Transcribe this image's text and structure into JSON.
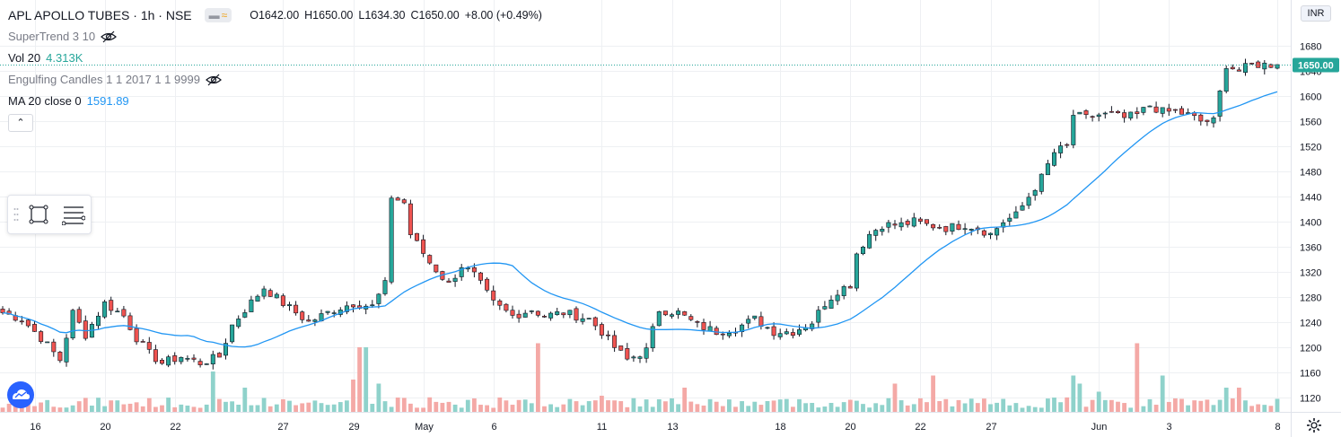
{
  "header": {
    "symbol_title": "APL APOLLO TUBES · 1h · NSE",
    "open": "O1642.00",
    "high": "H1650.00",
    "low": "L1634.30",
    "close": "C1650.00",
    "change": "+8.00 (+0.49%)",
    "currency": "INR"
  },
  "indicators": {
    "supertrend": "SuperTrend 3 10",
    "vol_label": "Vol 20",
    "vol_value": "4.313K",
    "engulfing": "Engulfing Candles 1 1 2017 1 1 9999",
    "ma_label": "MA 20 close 0",
    "ma_value": "1591.89"
  },
  "colors": {
    "up": "#26a69a",
    "down": "#ef5350",
    "ma": "#2196f3",
    "vol_up": "#8fd2cb",
    "vol_down": "#f4a9a6",
    "last_price_bg": "#26a69a"
  },
  "icons": [
    "eye-off-icon",
    "chevron-up-icon",
    "rectangle-tool-icon",
    "lines-tool-icon",
    "tradingview-logo-icon",
    "gear-icon"
  ],
  "chart_data": {
    "type": "candlestick",
    "title": "APL APOLLO TUBES · 1h · NSE",
    "ylim": [
      1100,
      1700
    ],
    "price_ticks": [
      1120,
      1160,
      1200,
      1240,
      1280,
      1320,
      1360,
      1400,
      1440,
      1480,
      1520,
      1560,
      1600,
      1640,
      1680
    ],
    "last_price": 1650.0,
    "last_price_label": "1650.00",
    "x_ticks": [
      {
        "label": "16",
        "bar": 5
      },
      {
        "label": "20",
        "bar": 16
      },
      {
        "label": "22",
        "bar": 27
      },
      {
        "label": "27",
        "bar": 44
      },
      {
        "label": "29",
        "bar": 55
      },
      {
        "label": "May",
        "bar": 66
      },
      {
        "label": "6",
        "bar": 77
      },
      {
        "label": "11",
        "bar": 94
      },
      {
        "label": "13",
        "bar": 105
      },
      {
        "label": "18",
        "bar": 122
      },
      {
        "label": "20",
        "bar": 133
      },
      {
        "label": "22",
        "bar": 144
      },
      {
        "label": "27",
        "bar": 155
      },
      {
        "label": "Jun",
        "bar": 172
      },
      {
        "label": "3",
        "bar": 183
      },
      {
        "label": "8",
        "bar": 200
      }
    ],
    "anchors": [
      [
        0,
        1255
      ],
      [
        3,
        1245
      ],
      [
        6,
        1215
      ],
      [
        9,
        1180
      ],
      [
        11,
        1255
      ],
      [
        13,
        1220
      ],
      [
        16,
        1270
      ],
      [
        19,
        1250
      ],
      [
        21,
        1215
      ],
      [
        23,
        1190
      ],
      [
        25,
        1175
      ],
      [
        28,
        1185
      ],
      [
        31,
        1175
      ],
      [
        34,
        1185
      ],
      [
        36,
        1235
      ],
      [
        38,
        1260
      ],
      [
        41,
        1295
      ],
      [
        44,
        1270
      ],
      [
        46,
        1255
      ],
      [
        48,
        1240
      ],
      [
        52,
        1260
      ],
      [
        55,
        1270
      ],
      [
        58,
        1265
      ],
      [
        60,
        1300
      ],
      [
        61,
        1440
      ],
      [
        63,
        1430
      ],
      [
        64,
        1380
      ],
      [
        67,
        1335
      ],
      [
        70,
        1300
      ],
      [
        72,
        1330
      ],
      [
        74,
        1315
      ],
      [
        77,
        1270
      ],
      [
        80,
        1250
      ],
      [
        83,
        1260
      ],
      [
        85,
        1250
      ],
      [
        88,
        1255
      ],
      [
        90,
        1250
      ],
      [
        92,
        1245
      ],
      [
        94,
        1225
      ],
      [
        96,
        1200
      ],
      [
        98,
        1180
      ],
      [
        101,
        1195
      ],
      [
        103,
        1260
      ],
      [
        106,
        1255
      ],
      [
        109,
        1235
      ],
      [
        112,
        1225
      ],
      [
        115,
        1230
      ],
      [
        118,
        1245
      ],
      [
        121,
        1225
      ],
      [
        124,
        1225
      ],
      [
        127,
        1240
      ],
      [
        129,
        1270
      ],
      [
        131,
        1290
      ],
      [
        133,
        1300
      ],
      [
        134,
        1350
      ],
      [
        136,
        1380
      ],
      [
        138,
        1395
      ],
      [
        141,
        1395
      ],
      [
        143,
        1400
      ],
      [
        145,
        1395
      ],
      [
        148,
        1390
      ],
      [
        151,
        1395
      ],
      [
        153,
        1390
      ],
      [
        155,
        1380
      ],
      [
        157,
        1400
      ],
      [
        159,
        1410
      ],
      [
        161,
        1440
      ],
      [
        163,
        1470
      ],
      [
        165,
        1510
      ],
      [
        167,
        1520
      ],
      [
        168,
        1570
      ],
      [
        170,
        1565
      ],
      [
        172,
        1570
      ],
      [
        174,
        1570
      ],
      [
        176,
        1565
      ],
      [
        178,
        1570
      ],
      [
        180,
        1585
      ],
      [
        182,
        1575
      ],
      [
        184,
        1575
      ],
      [
        186,
        1570
      ],
      [
        188,
        1560
      ],
      [
        190,
        1560
      ],
      [
        192,
        1650
      ],
      [
        194,
        1640
      ],
      [
        196,
        1650
      ]
    ],
    "volume_spikes": [
      {
        "bar": 33,
        "v": 5
      },
      {
        "bar": 38,
        "v": 3
      },
      {
        "bar": 55,
        "v": 4
      },
      {
        "bar": 56,
        "v": 8
      },
      {
        "bar": 57,
        "v": 8
      },
      {
        "bar": 59,
        "v": 3.5
      },
      {
        "bar": 84,
        "v": 8.5
      },
      {
        "bar": 94,
        "v": 2
      },
      {
        "bar": 107,
        "v": 3
      },
      {
        "bar": 140,
        "v": 3.5
      },
      {
        "bar": 146,
        "v": 4.5
      },
      {
        "bar": 168,
        "v": 4.5
      },
      {
        "bar": 169,
        "v": 3.5
      },
      {
        "bar": 172,
        "v": 2.5
      },
      {
        "bar": 178,
        "v": 8.5
      },
      {
        "bar": 182,
        "v": 4.5
      },
      {
        "bar": 192,
        "v": 3
      },
      {
        "bar": 194,
        "v": 3
      }
    ],
    "ma_period": 20,
    "ma_last_value": 1591.89
  }
}
